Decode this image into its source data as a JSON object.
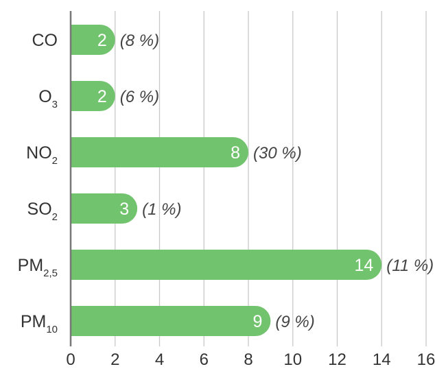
{
  "chart_data": {
    "type": "bar",
    "orientation": "horizontal",
    "categories": [
      {
        "base": "CO",
        "sub": ""
      },
      {
        "base": "O",
        "sub": "3"
      },
      {
        "base": "NO",
        "sub": "2"
      },
      {
        "base": "SO",
        "sub": "2"
      },
      {
        "base": "PM",
        "sub": "2,5"
      },
      {
        "base": "PM",
        "sub": "10"
      }
    ],
    "values": [
      2,
      2,
      8,
      3,
      14,
      9
    ],
    "value_labels": [
      "2",
      "2",
      "8",
      "3",
      "14",
      "9"
    ],
    "percent_labels": [
      "(8 %)",
      "(6 %)",
      "(30 %)",
      "(1 %)",
      "(11 %)",
      "(9 %)"
    ],
    "xlim": [
      0,
      16
    ],
    "xticks": [
      "0",
      "2",
      "4",
      "6",
      "8",
      "10",
      "12",
      "14",
      "16"
    ],
    "grid": "vertical",
    "title": "",
    "xlabel": "",
    "ylabel": "",
    "colors": {
      "bar": "#72c36e",
      "grid": "#c8c8c8",
      "axis": "#777777",
      "text": "#333333",
      "value_text": "#ffffff",
      "percent_text": "#444444"
    }
  }
}
